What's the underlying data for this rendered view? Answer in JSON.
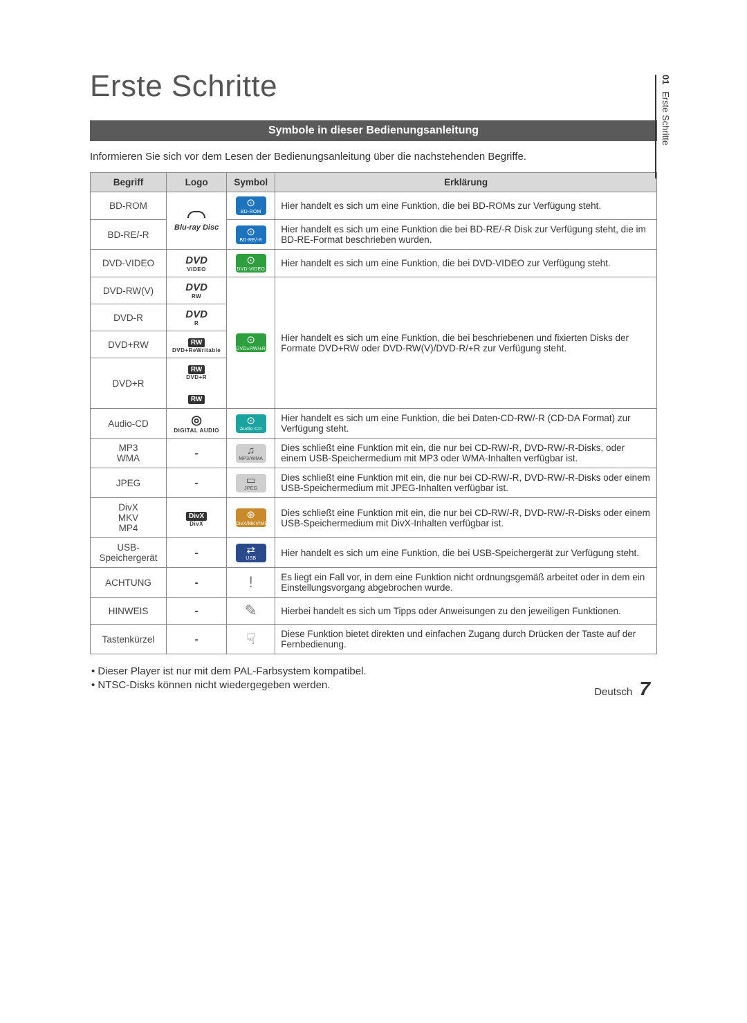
{
  "side_tab": {
    "chapter": "01",
    "title": "Erste Schritte"
  },
  "main_title": "Erste Schritte",
  "section_header": "Symbole in dieser Bedienungsanleitung",
  "intro": "Informieren Sie sich vor dem Lesen der Bedienungsanleitung über die nachstehenden Begriffe.",
  "columns": {
    "begriff": "Begriff",
    "logo": "Logo",
    "symbol": "Symbol",
    "erklaerung": "Erklärung"
  },
  "rows": {
    "bdrom": {
      "begriff": "BD-ROM",
      "logo_main": "",
      "logo_sub": "",
      "sym_glyph": "⊙",
      "sym_label": "BD-ROM",
      "sym_class": "bg-blue",
      "erkl": "Hier handelt es sich um eine Funktion, die bei BD-ROMs zur Verfügung steht."
    },
    "bdre": {
      "begriff": "BD-RE/-R",
      "logo_main": "",
      "logo_sub": "Blu-ray Disc",
      "sym_glyph": "⊙",
      "sym_label": "BD-RE/-R",
      "sym_class": "bg-blue",
      "erkl": "Hier handelt es sich um eine Funktion die bei BD-RE/-R Disk zur Verfügung steht, die im BD-RE-Format beschrieben wurden."
    },
    "dvdvideo": {
      "begriff": "DVD-VIDEO",
      "logo_main": "DVD",
      "logo_sub": "VIDEO",
      "sym_glyph": "⊙",
      "sym_label": "DVD-VIDEO",
      "sym_class": "bg-green",
      "erkl": "Hier handelt es sich um eine Funktion, die bei DVD-VIDEO zur Verfügung steht."
    },
    "dvdrwv": {
      "begriff": "DVD-RW(V)",
      "logo_main": "DVD",
      "logo_sub": "RW"
    },
    "dvdr": {
      "begriff": "DVD-R",
      "logo_main": "DVD",
      "logo_sub": "R"
    },
    "dvdprw": {
      "begriff": "DVD+RW",
      "logo_main": "RW",
      "logo_sub": "DVD+ReWritable"
    },
    "dvdpr": {
      "begriff": "DVD+R",
      "logo_main": "RW",
      "logo_sub": "DVD+R"
    },
    "dvdgroup": {
      "sym_glyph": "⊙",
      "sym_label": "DVD±RW/±R",
      "sym_class": "bg-green",
      "erkl": "Hier handelt es sich um eine Funktion, die bei beschriebenen und fixierten Disks der Formate DVD+RW oder DVD-RW(V)/DVD-R/+R  zur Verfügung steht."
    },
    "audiocd": {
      "begriff": "Audio-CD",
      "logo_main": "disc",
      "logo_sub": "DIGITAL AUDIO",
      "sym_glyph": "⊙",
      "sym_label": "Audio CD",
      "sym_class": "bg-teal",
      "erkl": "Hier handelt es sich um eine Funktion, die bei Daten-CD-RW/-R (CD-DA Format) zur Verfügung steht."
    },
    "mp3": {
      "begriff": "MP3\nWMA",
      "logo_main": "-",
      "sym_glyph": "♫",
      "sym_label": "MP3/WMA",
      "sym_class": "bg-gray",
      "erkl": "Dies schließt eine Funktion mit ein, die nur bei CD-RW/-R, DVD-RW/-R-Disks, oder einem USB-Speichermedium mit MP3 oder WMA-Inhalten verfügbar ist."
    },
    "jpeg": {
      "begriff": "JPEG",
      "logo_main": "-",
      "sym_glyph": "▭",
      "sym_label": "JPEG",
      "sym_class": "bg-gray",
      "erkl": "Dies schließt eine Funktion mit ein, die nur bei CD-RW/-R, DVD-RW/-R-Disks oder einem USB-Speichermedium mit JPEG-Inhalten verfügbar ist."
    },
    "divx": {
      "begriff": "DivX\nMKV\nMP4",
      "logo_main": "DivX",
      "logo_sub": "DivX",
      "sym_glyph": "⊛",
      "sym_label": "DivX/MKV/MP4",
      "sym_class": "bg-orange",
      "erkl": "Dies schließt eine Funktion mit ein, die nur bei CD-RW/-R, DVD-RW/-R-Disks oder einem USB-Speichermedium mit DivX-Inhalten verfügbar ist."
    },
    "usb": {
      "begriff": "USB-\nSpeichergerät",
      "logo_main": "-",
      "sym_glyph": "⇄",
      "sym_label": "USB",
      "sym_class": "bg-dblue",
      "erkl": "Hier handelt es sich um eine Funktion, die bei USB-Speichergerät zur Verfügung steht."
    },
    "achtung": {
      "begriff": "ACHTUNG",
      "logo_main": "-",
      "sym_glyph": "!",
      "sym_class": "plain",
      "erkl": "Es liegt ein Fall vor, in dem eine Funktion nicht ordnungsgemäß arbeitet oder in dem ein Einstellungsvorgang abgebrochen wurde."
    },
    "hinweis": {
      "begriff": "HINWEIS",
      "logo_main": "-",
      "sym_glyph": "✎",
      "sym_class": "plain",
      "erkl": "Hierbei handelt es sich um Tipps oder Anweisungen zu den jeweiligen Funktionen."
    },
    "taste": {
      "begriff": "Tastenkürzel",
      "logo_main": "-",
      "sym_glyph": "☟",
      "sym_class": "plain",
      "erkl": "Diese Funktion bietet direkten und einfachen Zugang durch Drücken der Taste auf der Fernbedienung."
    }
  },
  "notes": {
    "n1": "• Dieser Player ist nur mit dem PAL-Farbsystem kompatibel.",
    "n2": "• NTSC-Disks können nicht wiedergegeben werden."
  },
  "footer": {
    "lang": "Deutsch",
    "page": "7"
  }
}
